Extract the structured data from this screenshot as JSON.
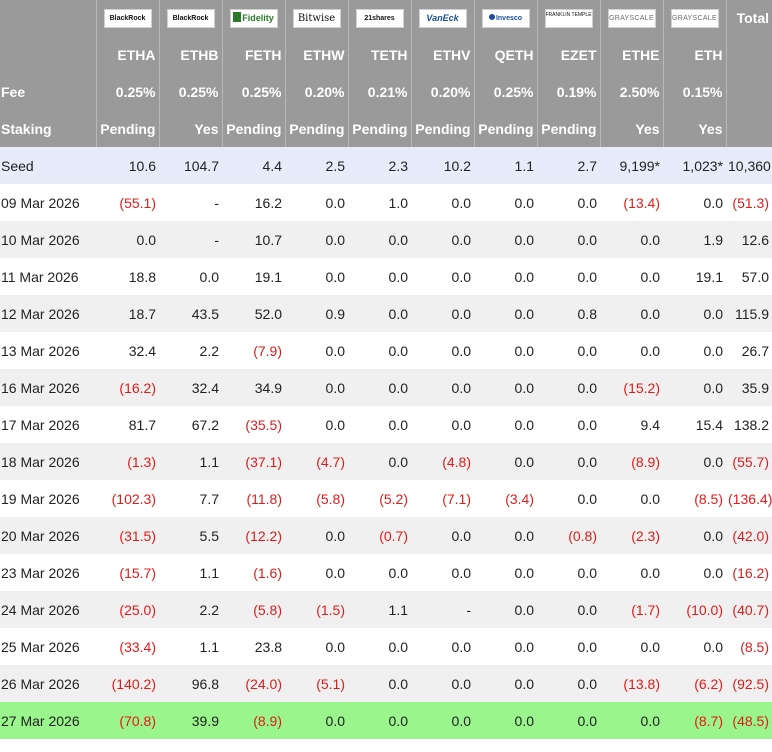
{
  "logos": [
    {
      "name": "blackrock-logo",
      "text": "BlackRock",
      "cls": "logo"
    },
    {
      "name": "blackrock-logo",
      "text": "BlackRock",
      "cls": "logo"
    },
    {
      "name": "fidelity-logo",
      "text": "Fidelity",
      "cls": "logo logo-fidelity"
    },
    {
      "name": "bitwise-logo",
      "text": "Bitwise",
      "cls": "logo logo-bitwise"
    },
    {
      "name": "21shares-logo",
      "text": "21shares",
      "cls": "logo"
    },
    {
      "name": "vaneck-logo",
      "text": "VanEck",
      "cls": "logo logo-vaneck"
    },
    {
      "name": "invesco-logo",
      "text": "Invesco",
      "cls": "logo logo-invesco"
    },
    {
      "name": "franklin-templeton-logo",
      "text": "FRANKLIN TEMPLETON",
      "cls": "logo logo-franklin"
    },
    {
      "name": "grayscale-logo",
      "text": "GRAYSCALE",
      "cls": "logo logo-grayscale"
    },
    {
      "name": "grayscale-logo",
      "text": "GRAYSCALE",
      "cls": "logo logo-grayscale"
    }
  ],
  "total_label": "Total",
  "tickers": [
    "ETHA",
    "ETHB",
    "FETH",
    "ETHW",
    "TETH",
    "ETHV",
    "QETH",
    "EZET",
    "ETHE",
    "ETH"
  ],
  "fee": {
    "label": "Fee",
    "values": [
      "0.25%",
      "0.25%",
      "0.25%",
      "0.20%",
      "0.21%",
      "0.20%",
      "0.25%",
      "0.19%",
      "2.50%",
      "0.15%"
    ]
  },
  "staking": {
    "label": "Staking",
    "values": [
      "Pending",
      "Yes",
      "Pending",
      "Pending",
      "Pending",
      "Pending",
      "Pending",
      "Pending",
      "Yes",
      "Yes"
    ]
  },
  "rows": [
    {
      "label": "Seed",
      "values": [
        "10.6",
        "104.7",
        "4.4",
        "2.5",
        "2.3",
        "10.2",
        "1.1",
        "2.7",
        "9,199*",
        "1,023*",
        "10,360"
      ]
    },
    {
      "label": "09 Mar 2026",
      "values": [
        "(55.1)",
        "-",
        "16.2",
        "0.0",
        "1.0",
        "0.0",
        "0.0",
        "0.0",
        "(13.4)",
        "0.0",
        "(51.3)"
      ]
    },
    {
      "label": "10 Mar 2026",
      "values": [
        "0.0",
        "-",
        "10.7",
        "0.0",
        "0.0",
        "0.0",
        "0.0",
        "0.0",
        "0.0",
        "1.9",
        "12.6"
      ]
    },
    {
      "label": "11 Mar 2026",
      "values": [
        "18.8",
        "0.0",
        "19.1",
        "0.0",
        "0.0",
        "0.0",
        "0.0",
        "0.0",
        "0.0",
        "19.1",
        "57.0"
      ]
    },
    {
      "label": "12 Mar 2026",
      "values": [
        "18.7",
        "43.5",
        "52.0",
        "0.9",
        "0.0",
        "0.0",
        "0.0",
        "0.8",
        "0.0",
        "0.0",
        "115.9"
      ]
    },
    {
      "label": "13 Mar 2026",
      "values": [
        "32.4",
        "2.2",
        "(7.9)",
        "0.0",
        "0.0",
        "0.0",
        "0.0",
        "0.0",
        "0.0",
        "0.0",
        "26.7"
      ]
    },
    {
      "label": "16 Mar 2026",
      "values": [
        "(16.2)",
        "32.4",
        "34.9",
        "0.0",
        "0.0",
        "0.0",
        "0.0",
        "0.0",
        "(15.2)",
        "0.0",
        "35.9"
      ]
    },
    {
      "label": "17 Mar 2026",
      "values": [
        "81.7",
        "67.2",
        "(35.5)",
        "0.0",
        "0.0",
        "0.0",
        "0.0",
        "0.0",
        "9.4",
        "15.4",
        "138.2"
      ]
    },
    {
      "label": "18 Mar 2026",
      "values": [
        "(1.3)",
        "1.1",
        "(37.1)",
        "(4.7)",
        "0.0",
        "(4.8)",
        "0.0",
        "0.0",
        "(8.9)",
        "0.0",
        "(55.7)"
      ]
    },
    {
      "label": "19 Mar 2026",
      "values": [
        "(102.3)",
        "7.7",
        "(11.8)",
        "(5.8)",
        "(5.2)",
        "(7.1)",
        "(3.4)",
        "0.0",
        "0.0",
        "(8.5)",
        "(136.4)"
      ]
    },
    {
      "label": "20 Mar 2026",
      "values": [
        "(31.5)",
        "5.5",
        "(12.2)",
        "0.0",
        "(0.7)",
        "0.0",
        "0.0",
        "(0.8)",
        "(2.3)",
        "0.0",
        "(42.0)"
      ]
    },
    {
      "label": "23 Mar 2026",
      "values": [
        "(15.7)",
        "1.1",
        "(1.6)",
        "0.0",
        "0.0",
        "0.0",
        "0.0",
        "0.0",
        "0.0",
        "0.0",
        "(16.2)"
      ]
    },
    {
      "label": "24 Mar 2026",
      "values": [
        "(25.0)",
        "2.2",
        "(5.8)",
        "(1.5)",
        "1.1",
        "-",
        "0.0",
        "0.0",
        "(1.7)",
        "(10.0)",
        "(40.7)"
      ]
    },
    {
      "label": "25 Mar 2026",
      "values": [
        "(33.4)",
        "1.1",
        "23.8",
        "0.0",
        "0.0",
        "0.0",
        "0.0",
        "0.0",
        "0.0",
        "0.0",
        "(8.5)"
      ]
    },
    {
      "label": "26 Mar 2026",
      "values": [
        "(140.2)",
        "96.8",
        "(24.0)",
        "(5.1)",
        "0.0",
        "0.0",
        "0.0",
        "0.0",
        "(13.8)",
        "(6.2)",
        "(92.5)"
      ]
    },
    {
      "label": "27 Mar 2026",
      "values": [
        "(70.8)",
        "39.9",
        "(8.9)",
        "0.0",
        "0.0",
        "0.0",
        "0.0",
        "0.0",
        "0.0",
        "(8.7)",
        "(48.5)"
      ]
    }
  ],
  "colors": {
    "header_bg": "#9a9a9a",
    "seed_bg": "#e6ecf9",
    "alt_row_bg": "#f0f0f0",
    "latest_row_bg": "#99f58c",
    "negative": "#e11b1b"
  }
}
